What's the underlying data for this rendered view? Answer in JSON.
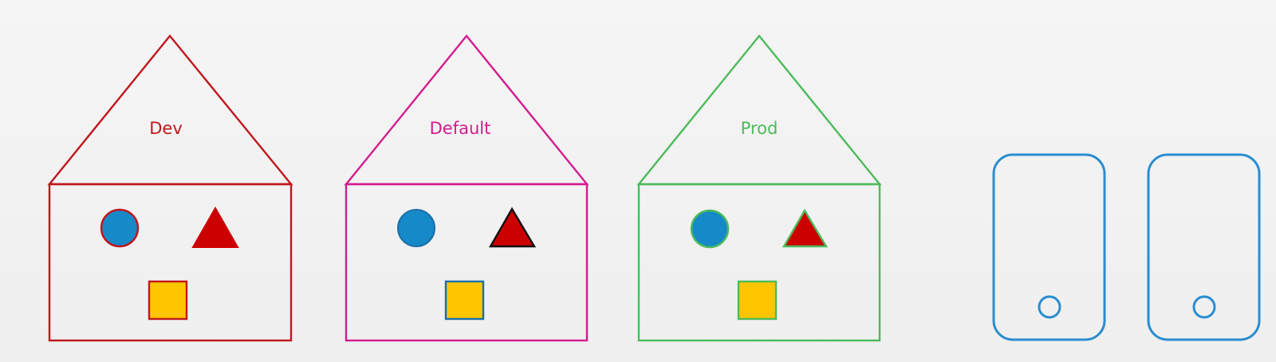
{
  "houses": [
    {
      "label": "Dev",
      "color": "#c0161c",
      "circle": {
        "fill": "#1689c8",
        "stroke": "#c0161c"
      },
      "triangle": {
        "fill": "#cc0000",
        "stroke": "#cc0000"
      },
      "square": {
        "fill": "#ffc600",
        "stroke": "#c0161c"
      }
    },
    {
      "label": "Default",
      "color": "#d41b8f",
      "circle": {
        "fill": "#1689c8",
        "stroke": "#1b6fa8"
      },
      "triangle": {
        "fill": "#cc0000",
        "stroke": "#111111"
      },
      "square": {
        "fill": "#ffc600",
        "stroke": "#1b6fa8"
      }
    },
    {
      "label": "Prod",
      "color": "#4cbb5a",
      "circle": {
        "fill": "#1689c8",
        "stroke": "#4cbb5a"
      },
      "triangle": {
        "fill": "#cc0000",
        "stroke": "#4cbb5a"
      },
      "square": {
        "fill": "#ffc600",
        "stroke": "#4cbb5a"
      }
    }
  ],
  "devices": {
    "count": 2,
    "color": "#2a8dd0"
  }
}
